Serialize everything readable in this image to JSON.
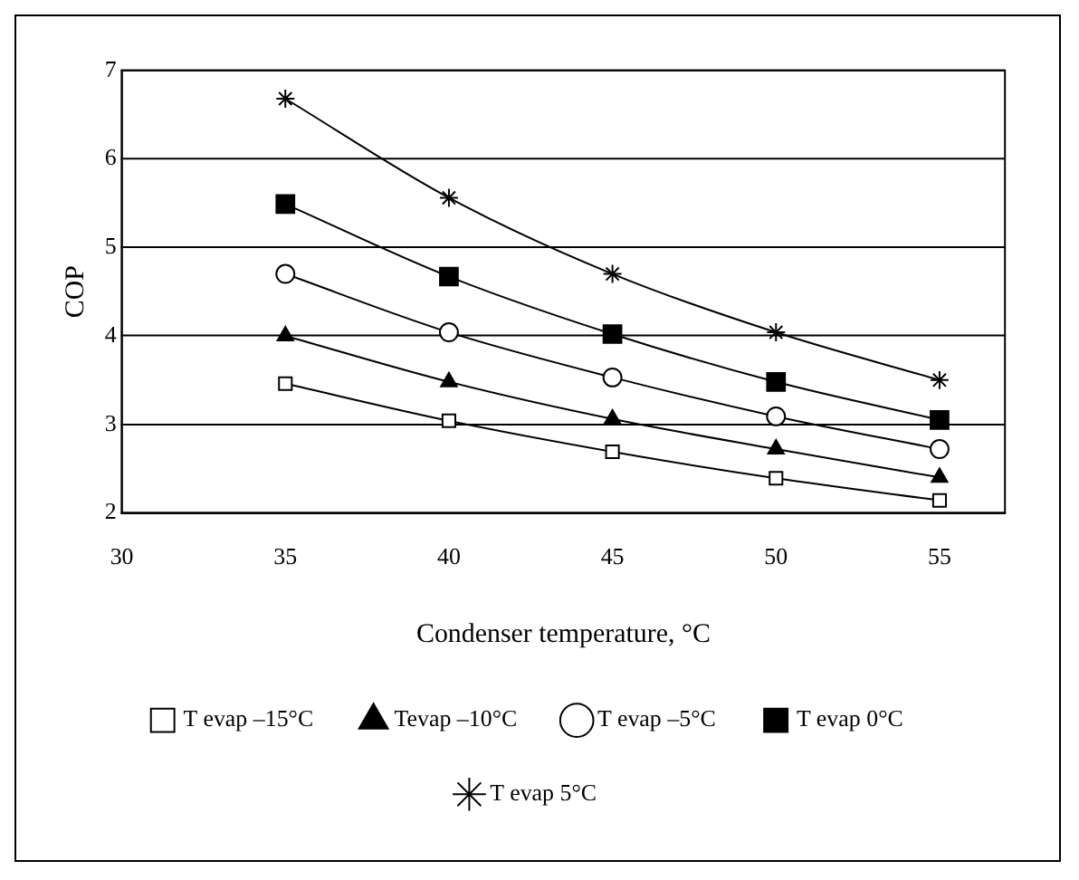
{
  "chart_data": {
    "type": "line",
    "xlabel": "Condenser temperature, °C",
    "ylabel": "COP",
    "x": [
      35,
      40,
      45,
      50,
      55
    ],
    "xlim": [
      30,
      57
    ],
    "xticks": [
      30,
      35,
      40,
      45,
      50,
      55
    ],
    "ylim": [
      2,
      7
    ],
    "yticks": [
      2,
      3,
      4,
      5,
      6,
      7
    ],
    "grid": "y",
    "legend": "bottom",
    "line_style": "solid",
    "series": [
      {
        "name": "T evap –15°C",
        "color": "#000000",
        "marker": "square",
        "values": [
          3.46,
          3.04,
          2.69,
          2.39,
          2.14
        ]
      },
      {
        "name": "Tevap –10°C",
        "color": "#000000",
        "marker": "triangle",
        "values": [
          4.0,
          3.48,
          3.06,
          2.72,
          2.4
        ]
      },
      {
        "name": "T evap –5°C",
        "color": "#000000",
        "marker": "circle",
        "values": [
          4.7,
          4.04,
          3.53,
          3.09,
          2.72
        ]
      },
      {
        "name": "T evap 0°C",
        "color": "#000000",
        "marker": "square",
        "values": [
          5.49,
          4.67,
          4.02,
          3.48,
          3.05
        ]
      },
      {
        "name": "T evap 5°C",
        "color": "#000000",
        "marker": "cross",
        "values": [
          6.68,
          5.56,
          4.7,
          4.04,
          3.5
        ]
      }
    ]
  }
}
